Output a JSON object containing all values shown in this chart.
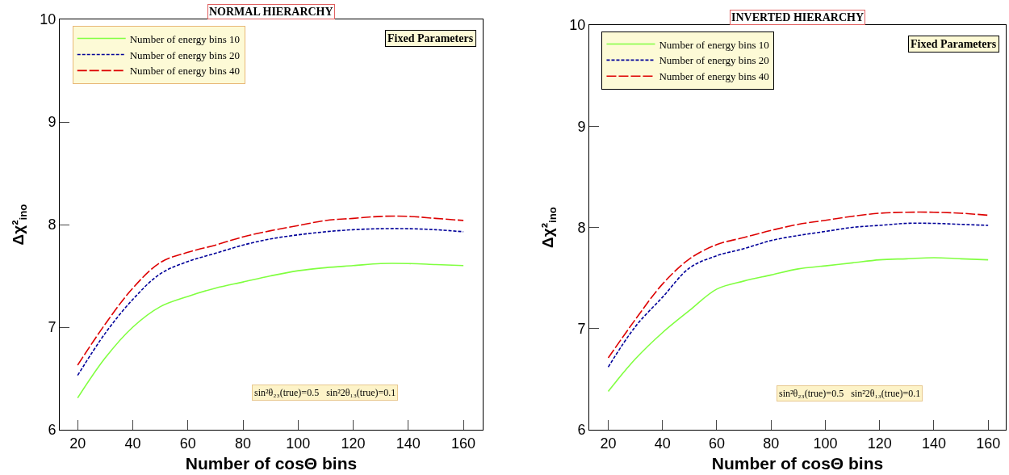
{
  "chart_data": [
    {
      "type": "line",
      "title": "NORMAL HIERARCHY",
      "xlabel": "Number of cosΘ bins",
      "ylabel": "Δχ²$_{ino}$",
      "annotations": [
        "Fixed Parameters",
        "sin²θ₂₃(true)=0.5   sin²2θ₁₃(true)=0.1"
      ],
      "x": [
        20,
        30,
        40,
        50,
        60,
        70,
        80,
        90,
        100,
        110,
        120,
        130,
        140,
        150,
        160
      ],
      "xlim": [
        13.5,
        167
      ],
      "xticks": [
        20,
        40,
        60,
        80,
        100,
        120,
        140,
        160
      ],
      "ylim": [
        6,
        10
      ],
      "yticks": [
        6,
        7,
        8,
        9,
        10
      ],
      "grid": false,
      "legend": "top left",
      "series": [
        {
          "name": "Number of energy bins 10",
          "color": "#80ff40",
          "line_style": "solid",
          "values": [
            6.31,
            6.7,
            7.0,
            7.2,
            7.3,
            7.38,
            7.44,
            7.5,
            7.55,
            7.58,
            7.6,
            7.62,
            7.62,
            7.61,
            7.6
          ]
        },
        {
          "name": "Number of energy bins 20",
          "color": "#000099",
          "line_style": "dotted",
          "values": [
            6.53,
            6.94,
            7.27,
            7.52,
            7.64,
            7.72,
            7.8,
            7.86,
            7.9,
            7.93,
            7.95,
            7.96,
            7.96,
            7.95,
            7.93
          ]
        },
        {
          "name": "Number of energy bins 40",
          "color": "#dd0000",
          "line_style": "dashed",
          "values": [
            6.63,
            7.03,
            7.38,
            7.63,
            7.73,
            7.8,
            7.88,
            7.94,
            7.99,
            8.04,
            8.06,
            8.08,
            8.08,
            8.06,
            8.04
          ]
        }
      ]
    },
    {
      "type": "line",
      "title": "INVERTED HIERARCHY",
      "xlabel": "Number of cosΘ bins",
      "ylabel": "Δχ²$_{ino}$",
      "annotations": [
        "Fixed Parameters",
        "sin²θ₂₃(true)=0.5   sin²2θ₁₃(true)=0.1"
      ],
      "x": [
        20,
        30,
        40,
        50,
        60,
        70,
        80,
        90,
        100,
        110,
        120,
        130,
        140,
        150,
        160
      ],
      "xlim": [
        13,
        166.5
      ],
      "xticks": [
        20,
        40,
        60,
        80,
        100,
        120,
        140,
        160
      ],
      "ylim": [
        6,
        10
      ],
      "yticks": [
        6,
        7,
        8,
        9,
        10
      ],
      "grid": false,
      "legend": "top left",
      "series": [
        {
          "name": "Number of energy bins 10",
          "color": "#80ff40",
          "line_style": "solid",
          "values": [
            6.38,
            6.7,
            6.96,
            7.18,
            7.39,
            7.47,
            7.53,
            7.59,
            7.62,
            7.65,
            7.68,
            7.69,
            7.7,
            7.69,
            7.68
          ]
        },
        {
          "name": "Number of energy bins 20",
          "color": "#000099",
          "line_style": "dotted",
          "values": [
            6.62,
            7.02,
            7.31,
            7.6,
            7.72,
            7.79,
            7.87,
            7.92,
            7.96,
            8.0,
            8.02,
            8.04,
            8.04,
            8.03,
            8.02
          ]
        },
        {
          "name": "Number of energy bins 40",
          "color": "#dd0000",
          "line_style": "dashed",
          "values": [
            6.71,
            7.09,
            7.44,
            7.69,
            7.83,
            7.9,
            7.97,
            8.03,
            8.07,
            8.11,
            8.14,
            8.15,
            8.15,
            8.14,
            8.12
          ]
        }
      ]
    }
  ]
}
